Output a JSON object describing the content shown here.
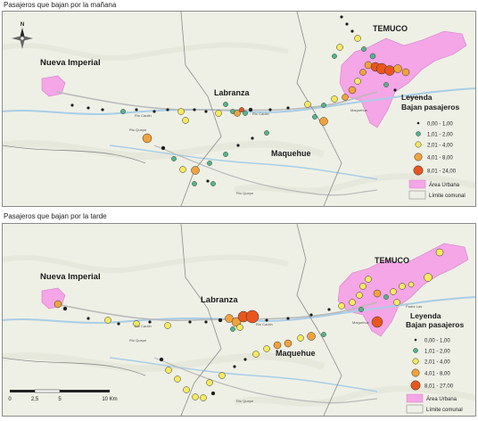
{
  "colors": {
    "urban": "#f4a6e6",
    "background": "#eef0e6",
    "road": "#b9b9b9",
    "river": "#a9cde6",
    "commune": "#8c8c8c",
    "class1": "#1a1a1a",
    "class2": "#52b788",
    "class3": "#f7ea5c",
    "class4": "#f2a23c",
    "class5": "#e8561e"
  },
  "maps": [
    {
      "caption": "Pasajeros que bajan por la mañana",
      "cities": {
        "temuco": "TEMUCO",
        "imperial": "Nueva Imperial",
        "labranza": "Labranza",
        "maquehue": "Maquehue"
      },
      "small_labels": [
        "Padre Las",
        "Maquehue",
        "Rio Cautin",
        "Rio Quepe",
        "Rio Quepe",
        "Rio Cautin"
      ],
      "legend": {
        "title": "Leyenda",
        "subtitle": "Bajan pasajeros",
        "classes": [
          "0,00 - 1,00",
          "1,01 - 2,00",
          "2,01 - 4,00",
          "4,01 - 8,00",
          "8,01 - 24,00"
        ],
        "urban_label": "Área Urbana",
        "limit_label": "Límite comunal"
      }
    },
    {
      "caption": "Pasajeros que bajan por la tarde",
      "cities": {
        "temuco": "TEMUCO",
        "imperial": "Nueva Imperial",
        "labranza": "Labranza",
        "maquehue": "Maquehue"
      },
      "small_labels": [
        "Padre Las",
        "Maquehue",
        "Rio Cautin",
        "Rio Quepe",
        "Rio Quepe",
        "Rio Cautin"
      ],
      "legend": {
        "title": "Leyenda",
        "subtitle": "Bajan pasajeros",
        "classes": [
          "0,00 - 1,00",
          "1,01 - 2,00",
          "2,01 - 4,00",
          "4,01 - 8,00",
          "8,01 - 27,00"
        ],
        "urban_label": "Área Urbana",
        "limit_label": "Límite comunal"
      }
    }
  ],
  "scale": {
    "ticks": [
      "0",
      "2,5",
      "5",
      "10 Km"
    ]
  },
  "north": "N"
}
